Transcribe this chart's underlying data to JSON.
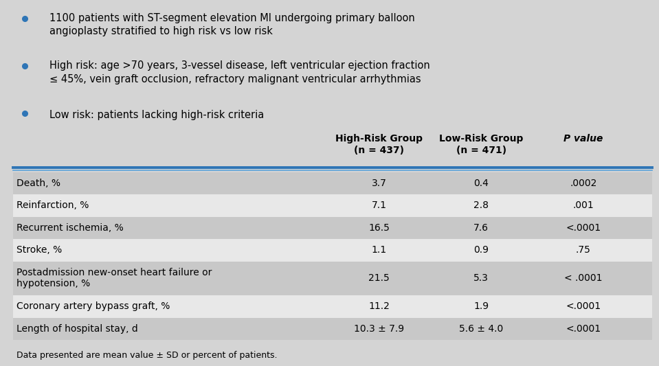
{
  "background_color": "#d4d4d4",
  "bullet_color": "#2e75b6",
  "bullet_points": [
    "1100 patients with ST-segment elevation MI undergoing primary balloon\nangioplasty stratified to high risk vs low risk",
    "High risk: age >70 years, 3-vessel disease, left ventricular ejection fraction\n≤ 45%, vein graft occlusion, refractory malignant ventricular arrhythmias",
    "Low risk: patients lacking high-risk criteria"
  ],
  "header_col1": "High-Risk Group\n(n = 437)",
  "header_col2": "Low-Risk Group\n(n = 471)",
  "header_col3": "P value",
  "table_rows": [
    [
      "Death, %",
      "3.7",
      "0.4",
      ".0002"
    ],
    [
      "Reinfarction, %",
      "7.1",
      "2.8",
      ".001"
    ],
    [
      "Recurrent ischemia, %",
      "16.5",
      "7.6",
      "<.0001"
    ],
    [
      "Stroke, %",
      "1.1",
      "0.9",
      ".75"
    ],
    [
      "Postadmission new-onset heart failure or\nhypotension, %",
      "21.5",
      "5.3",
      "< .0001"
    ],
    [
      "Coronary artery bypass graft, %",
      "11.2",
      "1.9",
      "<.0001"
    ],
    [
      "Length of hospital stay, d",
      "10.3 ± 7.9",
      "5.6 ± 4.0",
      "<.0001"
    ]
  ],
  "row_colors": [
    "#c8c8c8",
    "#e8e8e8",
    "#c8c8c8",
    "#e8e8e8",
    "#c8c8c8",
    "#e8e8e8",
    "#c8c8c8"
  ],
  "header_line_color1": "#2e75b6",
  "header_line_color2": "#5ba3d9",
  "footer_text": "Data presented are mean value ± SD or percent of patients.",
  "font_size_bullets": 10.5,
  "font_size_table": 10,
  "font_size_footer": 9
}
